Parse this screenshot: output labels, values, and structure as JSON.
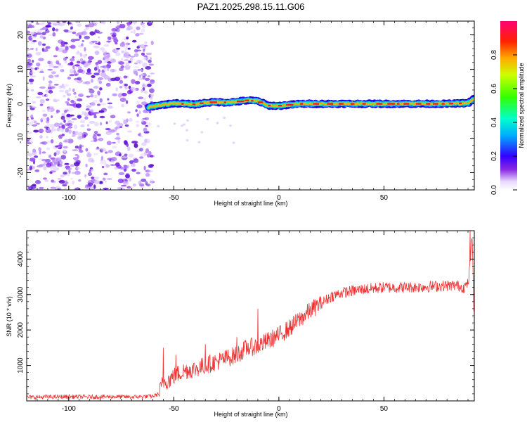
{
  "chart_data": [
    {
      "type": "heatmap",
      "title": "PAZ1.2025.298.15.11.G06",
      "xlabel": "Height of straight line (km)",
      "ylabel": "Frequency (Hz)",
      "xlim": [
        -120,
        93
      ],
      "ylim": [
        -25,
        24
      ],
      "xticks": [
        -100,
        -50,
        0,
        50
      ],
      "yticks": [
        -20,
        -10,
        0,
        10,
        20
      ],
      "noise_region_x": [
        -120,
        -60
      ],
      "signal_track": {
        "x": [
          -62,
          -58,
          -55,
          -50,
          -45,
          -40,
          -35,
          -30,
          -25,
          -20,
          -15,
          -10,
          -5,
          0,
          5,
          10,
          20,
          30,
          40,
          50,
          60,
          70,
          80,
          90,
          93
        ],
        "freq": [
          -1.0,
          -0.5,
          -0.3,
          0.2,
          0.0,
          -0.2,
          0.3,
          0.5,
          0.4,
          0.6,
          1.0,
          0.8,
          -0.5,
          -0.6,
          -0.3,
          0.0,
          0.0,
          0.0,
          0.0,
          0.0,
          0.0,
          0.0,
          0.0,
          0.2,
          1.5
        ]
      },
      "colorbar": {
        "label": "Normalized spectral amplitude",
        "range": [
          0.0,
          1.0
        ],
        "ticks": [
          0.0,
          0.2,
          0.4,
          0.6,
          0.8
        ],
        "tick_labels": [
          "0.0",
          "0.2",
          "0.4",
          "0.6",
          "0.8"
        ]
      }
    },
    {
      "type": "line",
      "xlabel": "Height of straight line (km)",
      "ylabel": "SNR (10 * v/v)",
      "xlim": [
        -120,
        93
      ],
      "ylim": [
        0,
        4800
      ],
      "xticks": [
        -100,
        -50,
        0,
        50
      ],
      "yticks": [
        1000,
        2000,
        3000,
        4000
      ],
      "color": "#ee3333",
      "series": [
        {
          "name": "SNR",
          "x": [
            -120,
            -110,
            -100,
            -90,
            -80,
            -70,
            -60,
            -57,
            -55,
            -52,
            -50,
            -45,
            -40,
            -35,
            -30,
            -25,
            -20,
            -15,
            -10,
            -5,
            0,
            5,
            10,
            15,
            20,
            25,
            30,
            40,
            50,
            60,
            70,
            80,
            85,
            88,
            90,
            91,
            92,
            93
          ],
          "y": [
            100,
            110,
            120,
            110,
            120,
            110,
            130,
            200,
            550,
            600,
            700,
            850,
            900,
            1000,
            1100,
            1200,
            1300,
            1500,
            1550,
            1700,
            1850,
            2050,
            2300,
            2550,
            2750,
            2950,
            3050,
            3150,
            3200,
            3200,
            3220,
            3250,
            3250,
            3200,
            3300,
            3800,
            4600,
            2200
          ]
        }
      ],
      "spikes": [
        {
          "x": -55,
          "y": 1500
        },
        {
          "x": -49,
          "y": 1300
        },
        {
          "x": -35,
          "y": 1600
        },
        {
          "x": -20,
          "y": 1800
        },
        {
          "x": -10,
          "y": 2600
        },
        {
          "x": 91,
          "y": 4800
        }
      ]
    }
  ]
}
